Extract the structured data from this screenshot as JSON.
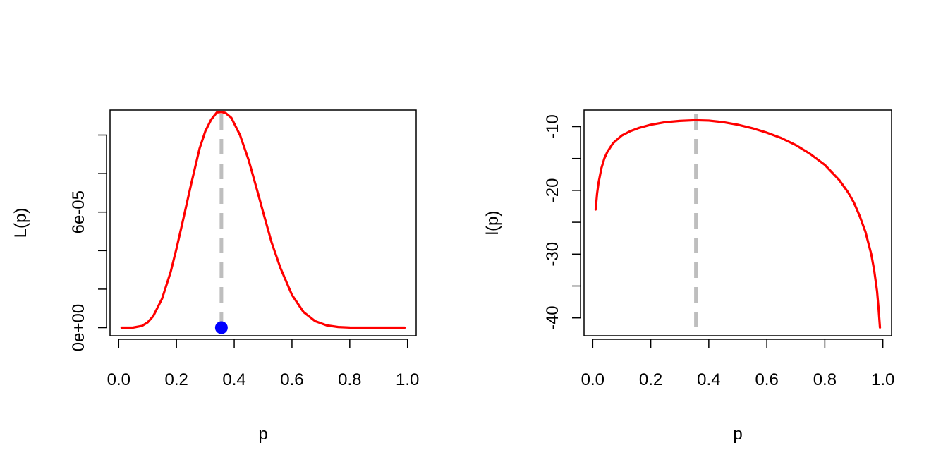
{
  "colors": {
    "curve": "#FF0000",
    "mle_line": "#BEBEBE",
    "mle_point": "#0000FF",
    "axis": "#000000",
    "background": "#FFFFFF"
  },
  "chart_data": [
    {
      "type": "line",
      "xlabel": "p",
      "ylabel": "L(p)",
      "xlim": [
        -0.03,
        1.03
      ],
      "ylim": [
        -4.2e-06,
        0.000113
      ],
      "x_ticks": [
        0,
        0.2,
        0.4,
        0.6,
        0.8,
        1.0
      ],
      "x_tick_labels": [
        "0.0",
        "0.2",
        "0.4",
        "0.6",
        "0.8",
        "1.0"
      ],
      "y_ticks": [
        0,
        2e-05,
        4e-05,
        6e-05,
        8e-05,
        0.0001
      ],
      "y_tick_labels": [
        "0e+00",
        "",
        "",
        "6e-05",
        "",
        ""
      ],
      "box": true,
      "grid": false,
      "series": [
        {
          "x": [
            0.01,
            0.05,
            0.08,
            0.1,
            0.12,
            0.15,
            0.18,
            0.2,
            0.22,
            0.25,
            0.28,
            0.3,
            0.32,
            0.34,
            0.3556,
            0.37,
            0.39,
            0.42,
            0.45,
            0.48,
            0.5,
            0.53,
            0.56,
            0.6,
            0.64,
            0.68,
            0.72,
            0.76,
            0.8,
            0.85,
            0.9,
            0.95,
            0.99
          ],
          "y": [
            0.0,
            6e-08,
            9e-07,
            2.7e-06,
            6.1e-06,
            1.5e-05,
            2.9e-05,
            4.1e-05,
            5.4e-05,
            7.4e-05,
            9.3e-05,
            0.000102,
            0.000108,
            0.0001118,
            0.000112,
            0.0001115,
            0.000109,
            0.0001,
            8.7e-05,
            7.1e-05,
            6e-05,
            4.4e-05,
            3.1e-05,
            1.7e-05,
            8.1e-06,
            3.4e-06,
            1.2e-06,
            3.3e-07,
            7e-08,
            0.0,
            0.0,
            0.0,
            0.0
          ]
        }
      ],
      "annotations": {
        "vertical_dashed_line_x": 0.3556,
        "point": {
          "x": 0.3556,
          "y": 0.0
        }
      }
    },
    {
      "type": "line",
      "xlabel": "p",
      "ylabel": "l(p)",
      "xlim": [
        -0.03,
        1.03
      ],
      "ylim": [
        -42.8,
        -7.4
      ],
      "x_ticks": [
        0,
        0.2,
        0.4,
        0.6,
        0.8,
        1.0
      ],
      "x_tick_labels": [
        "0.0",
        "0.2",
        "0.4",
        "0.6",
        "0.8",
        "1.0"
      ],
      "y_ticks": [
        -40,
        -35,
        -30,
        -25,
        -20,
        -15,
        -10
      ],
      "y_tick_labels": [
        "-40",
        "",
        "-30",
        "",
        "-20",
        "",
        "-10"
      ],
      "box": true,
      "grid": false,
      "series": [
        {
          "x": [
            0.01,
            0.015,
            0.02,
            0.03,
            0.04,
            0.05,
            0.07,
            0.1,
            0.13,
            0.16,
            0.2,
            0.25,
            0.3,
            0.35,
            0.3556,
            0.4,
            0.45,
            0.5,
            0.55,
            0.6,
            0.65,
            0.7,
            0.75,
            0.8,
            0.85,
            0.88,
            0.9,
            0.92,
            0.94,
            0.96,
            0.97,
            0.98,
            0.985,
            0.99
          ],
          "y": [
            -23.0,
            -20.5,
            -18.8,
            -16.5,
            -15.0,
            -14.0,
            -12.6,
            -11.4,
            -10.7,
            -10.2,
            -9.7,
            -9.3,
            -9.1,
            -9.0,
            -9.0,
            -9.05,
            -9.3,
            -9.7,
            -10.25,
            -10.95,
            -11.8,
            -12.9,
            -14.3,
            -16.0,
            -18.4,
            -20.3,
            -21.9,
            -24.0,
            -26.5,
            -30.0,
            -32.5,
            -35.8,
            -38.4,
            -41.5
          ]
        }
      ],
      "annotations": {
        "vertical_dashed_line_x": 0.3556
      }
    }
  ]
}
